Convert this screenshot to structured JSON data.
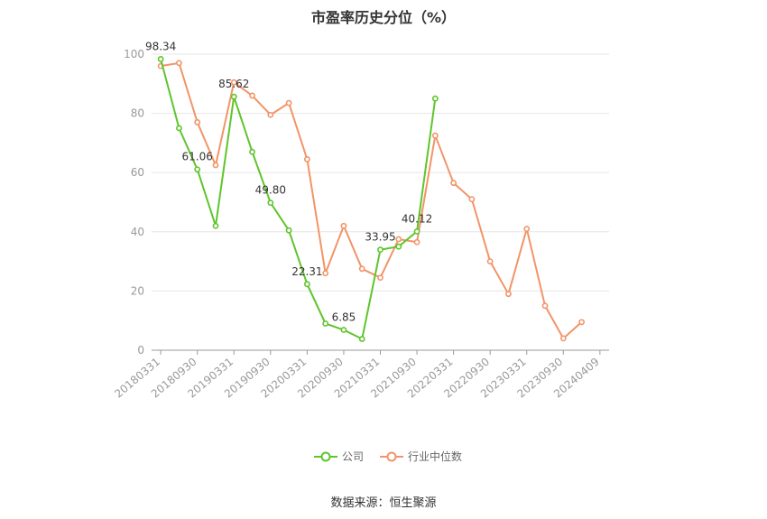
{
  "chart_data": {
    "type": "line",
    "title": "市盈率历史分位（%）",
    "xlabel": "",
    "ylabel": "",
    "ylim": [
      0,
      100
    ],
    "yticks": [
      0,
      20,
      40,
      60,
      80,
      100
    ],
    "x": [
      "20180331",
      "20180630",
      "20180930",
      "20181231",
      "20190331",
      "20190630",
      "20190930",
      "20191231",
      "20200331",
      "20200630",
      "20200930",
      "20201231",
      "20210331",
      "20210630",
      "20210930",
      "20211231",
      "20220331",
      "20220630",
      "20220930",
      "20221231",
      "20230331",
      "20230630",
      "20230930",
      "20231231",
      "20240409"
    ],
    "x_tick_labels": [
      "20180331",
      "20180930",
      "20190331",
      "20190930",
      "20200331",
      "20200930",
      "20210331",
      "20210930",
      "20220331",
      "20220930",
      "20230331",
      "20230930",
      "20240409"
    ],
    "grid": true,
    "legend_position": "bottom",
    "series": [
      {
        "name": "公司",
        "color": "#5ec52c",
        "values": [
          98.34,
          75.0,
          61.06,
          42.0,
          85.62,
          67.0,
          49.8,
          40.5,
          22.31,
          9.0,
          6.85,
          3.8,
          33.95,
          35.0,
          40.12,
          85.0,
          null,
          null,
          null,
          null,
          null,
          null,
          null,
          null,
          null
        ],
        "data_labels": [
          {
            "index": 0,
            "text": "98.34"
          },
          {
            "index": 2,
            "text": "61.06"
          },
          {
            "index": 4,
            "text": "85.62"
          },
          {
            "index": 6,
            "text": "49.80"
          },
          {
            "index": 8,
            "text": "22.31"
          },
          {
            "index": 10,
            "text": "6.85"
          },
          {
            "index": 12,
            "text": "33.95"
          },
          {
            "index": 14,
            "text": "40.12"
          }
        ]
      },
      {
        "name": "行业中位数",
        "color": "#f29468",
        "values": [
          96.0,
          97.0,
          77.0,
          62.5,
          90.5,
          86.0,
          79.5,
          83.5,
          64.5,
          26.0,
          42.0,
          27.5,
          24.5,
          37.5,
          36.5,
          72.5,
          56.5,
          51.0,
          30.0,
          19.0,
          41.0,
          15.0,
          4.0,
          9.5,
          null
        ]
      }
    ]
  },
  "source": "数据来源：恒生聚源"
}
